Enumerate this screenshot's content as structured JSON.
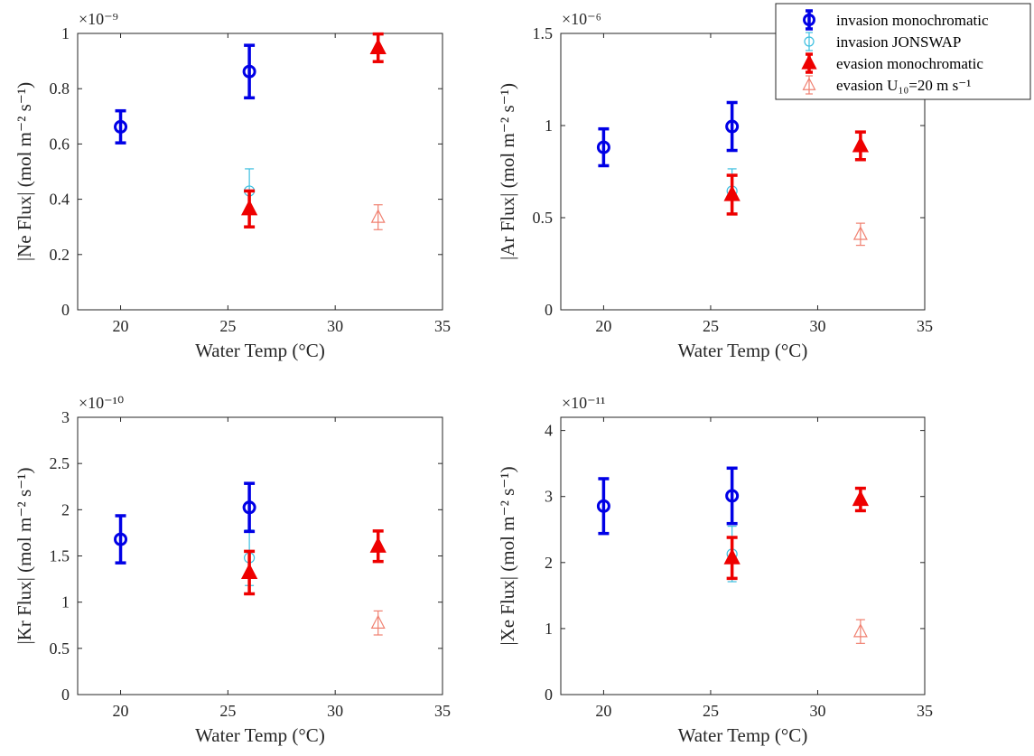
{
  "colors": {
    "invasion_monochromatic": "#0000e6",
    "invasion_jonswap": "#3cbfe0",
    "evasion_monochromatic": "#ee0000",
    "evasion_u10": "#f08070",
    "axis": "#262626"
  },
  "legend": {
    "placement": "top-right",
    "entries": [
      {
        "key": "invasion_monochromatic",
        "label": "invasion monochromatic",
        "marker": "circle",
        "style": "bold"
      },
      {
        "key": "invasion_jonswap",
        "label": "invasion JONSWAP",
        "marker": "circle",
        "style": "thin"
      },
      {
        "key": "evasion_monochromatic",
        "label": "evasion monochromatic",
        "marker": "triangle",
        "style": "bold"
      },
      {
        "key": "evasion_u10",
        "label": "evasion  U₁₀=20 m s⁻¹",
        "marker": "triangle",
        "style": "thin"
      }
    ]
  },
  "chart_data": [
    {
      "type": "scatter",
      "ylabel": "|Ne Flux| (mol m⁻² s⁻¹)",
      "xlabel": "Water Temp (°C)",
      "multiplier": "×10⁻⁹",
      "xlim": [
        18,
        35
      ],
      "xticks": [
        20,
        25,
        30,
        35
      ],
      "ylim": [
        0,
        1
      ],
      "yticks": [
        0,
        0.2,
        0.4,
        0.6,
        0.8,
        1
      ],
      "yticklabels": [
        "0",
        "0.2",
        "0.4",
        "0.6",
        "0.8",
        "1"
      ],
      "grid": false,
      "series": [
        {
          "key": "invasion_monochromatic",
          "points": [
            {
              "x": 20,
              "y": 0.662,
              "err": 0.058
            },
            {
              "x": 26,
              "y": 0.862,
              "err": 0.095
            }
          ]
        },
        {
          "key": "invasion_jonswap",
          "points": [
            {
              "x": 26,
              "y": 0.43,
              "err": 0.08
            }
          ]
        },
        {
          "key": "evasion_monochromatic",
          "points": [
            {
              "x": 26,
              "y": 0.365,
              "err": 0.065
            },
            {
              "x": 32,
              "y": 0.948,
              "err": 0.05
            }
          ]
        },
        {
          "key": "evasion_u10",
          "points": [
            {
              "x": 32,
              "y": 0.335,
              "err": 0.045
            }
          ]
        }
      ]
    },
    {
      "type": "scatter",
      "ylabel": "|Ar Flux| (mol m⁻² s⁻¹)",
      "xlabel": "Water Temp (°C)",
      "multiplier": "×10⁻⁶",
      "xlim": [
        18,
        35
      ],
      "xticks": [
        20,
        25,
        30,
        35
      ],
      "ylim": [
        0,
        1.5
      ],
      "yticks": [
        0,
        0.5,
        1,
        1.5
      ],
      "yticklabels": [
        "0",
        "0.5",
        "1",
        "1.5"
      ],
      "grid": false,
      "series": [
        {
          "key": "invasion_monochromatic",
          "points": [
            {
              "x": 20,
              "y": 0.882,
              "err": 0.1
            },
            {
              "x": 26,
              "y": 0.995,
              "err": 0.13
            }
          ]
        },
        {
          "key": "invasion_jonswap",
          "points": [
            {
              "x": 26,
              "y": 0.645,
              "err": 0.12
            }
          ]
        },
        {
          "key": "evasion_monochromatic",
          "points": [
            {
              "x": 26,
              "y": 0.625,
              "err": 0.105
            },
            {
              "x": 32,
              "y": 0.89,
              "err": 0.075
            }
          ]
        },
        {
          "key": "evasion_u10",
          "points": [
            {
              "x": 32,
              "y": 0.41,
              "err": 0.06
            }
          ]
        }
      ]
    },
    {
      "type": "scatter",
      "ylabel": "|Kr Flux| (mol m⁻² s⁻¹)",
      "xlabel": "Water Temp (°C)",
      "multiplier": "×10⁻¹⁰",
      "xlim": [
        18,
        35
      ],
      "xticks": [
        20,
        25,
        30,
        35
      ],
      "ylim": [
        0,
        3
      ],
      "yticks": [
        0,
        0.5,
        1,
        1.5,
        2,
        2.5,
        3
      ],
      "yticklabels": [
        "0",
        "0.5",
        "1",
        "1.5",
        "2",
        "2.5",
        "3"
      ],
      "grid": false,
      "series": [
        {
          "key": "invasion_monochromatic",
          "points": [
            {
              "x": 20,
              "y": 1.68,
              "err": 0.255
            },
            {
              "x": 26,
              "y": 2.025,
              "err": 0.26
            }
          ]
        },
        {
          "key": "invasion_jonswap",
          "points": [
            {
              "x": 26,
              "y": 1.48,
              "err": 0.3
            }
          ]
        },
        {
          "key": "evasion_monochromatic",
          "points": [
            {
              "x": 26,
              "y": 1.32,
              "err": 0.23
            },
            {
              "x": 32,
              "y": 1.605,
              "err": 0.165
            }
          ]
        },
        {
          "key": "evasion_u10",
          "points": [
            {
              "x": 32,
              "y": 0.775,
              "err": 0.13
            }
          ]
        }
      ]
    },
    {
      "type": "scatter",
      "ylabel": "|Xe Flux| (mol m⁻² s⁻¹)",
      "xlabel": "Water Temp (°C)",
      "multiplier": "×10⁻¹¹",
      "xlim": [
        18,
        35
      ],
      "xticks": [
        20,
        25,
        30,
        35
      ],
      "ylim": [
        0,
        4.2
      ],
      "yticks": [
        0,
        1,
        2,
        3,
        4
      ],
      "yticklabels": [
        "0",
        "1",
        "2",
        "3",
        "4"
      ],
      "grid": false,
      "series": [
        {
          "key": "invasion_monochromatic",
          "points": [
            {
              "x": 20,
              "y": 2.855,
              "err": 0.415
            },
            {
              "x": 26,
              "y": 3.01,
              "err": 0.42
            }
          ]
        },
        {
          "key": "invasion_jonswap",
          "points": [
            {
              "x": 26,
              "y": 2.13,
              "err": 0.42
            }
          ]
        },
        {
          "key": "evasion_monochromatic",
          "points": [
            {
              "x": 26,
              "y": 2.07,
              "err": 0.31
            },
            {
              "x": 32,
              "y": 2.955,
              "err": 0.17
            }
          ]
        },
        {
          "key": "evasion_u10",
          "points": [
            {
              "x": 32,
              "y": 0.955,
              "err": 0.18
            }
          ]
        }
      ]
    }
  ]
}
